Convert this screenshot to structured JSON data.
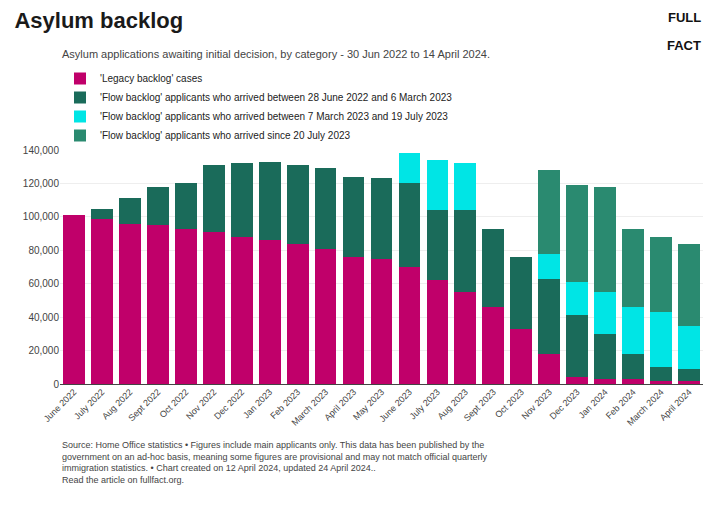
{
  "chart_data": {
    "type": "bar",
    "stacked": true,
    "title": "Asylum backlog",
    "subtitle": "Asylum applications awaiting initial decision, by category - 30 Jun 2022 to 14 April 2024.",
    "categories": [
      "June 2022",
      "July 2022",
      "Aug 2022",
      "Sept 2022",
      "Oct 2022",
      "Nov 2022",
      "Dec 2022",
      "Jan 2023",
      "Feb 2023",
      "March 2023",
      "April 2023",
      "May 2023",
      "June 2023",
      "July 2023",
      "Aug 2023",
      "Sept 2023",
      "Oct 2023",
      "Nov 2023",
      "Dec 2023",
      "Jan 2024",
      "Feb 2024",
      "March 2024",
      "April 2024"
    ],
    "series": [
      {
        "name": "'Legacy backlog' cases",
        "color": "#c0006a",
        "values": [
          101000,
          99000,
          96000,
          95000,
          93000,
          91000,
          88000,
          86000,
          84000,
          81000,
          76000,
          75000,
          70000,
          62000,
          55000,
          46000,
          33000,
          18000,
          4000,
          3000,
          3000,
          2000,
          2000
        ]
      },
      {
        "name": "'Flow backlog' applicants who arrived between 28 June 2022 and 6 March 2023",
        "color": "#1a6b5a",
        "values": [
          0,
          6000,
          15000,
          23000,
          27000,
          40000,
          44000,
          47000,
          47000,
          48000,
          48000,
          48000,
          50000,
          42000,
          49000,
          47000,
          43000,
          45000,
          37000,
          27000,
          15000,
          8000,
          7000
        ]
      },
      {
        "name": "'Flow backlog' applicants who arrived between 7 March 2023 and 19 July 2023",
        "color": "#00e5e5",
        "values": [
          0,
          0,
          0,
          0,
          0,
          0,
          0,
          0,
          0,
          0,
          0,
          0,
          18000,
          30000,
          28000,
          0,
          0,
          15000,
          20000,
          25000,
          28000,
          33000,
          26000
        ]
      },
      {
        "name": "'Flow backlog' applicants who arrived since 20 July 2023",
        "color": "#2a8a70",
        "values": [
          0,
          0,
          0,
          0,
          0,
          0,
          0,
          0,
          0,
          0,
          0,
          0,
          0,
          0,
          0,
          0,
          0,
          50000,
          58000,
          63000,
          47000,
          45000,
          49000
        ]
      }
    ],
    "ylim": [
      0,
      140000
    ],
    "yticks": [
      0,
      {
        "value": 20000,
        "label": "20,000"
      },
      {
        "value": 40000,
        "label": "40,000"
      },
      {
        "value": 60000,
        "label": "60,000"
      },
      {
        "value": 80000,
        "label": "80,000"
      },
      {
        "value": 100000,
        "label": "100,000"
      },
      {
        "value": 120000,
        "label": "120,000"
      },
      {
        "value": 140000,
        "label": "140,000"
      }
    ],
    "grid": true,
    "legend": "top left",
    "annotations": [
      "Source: Home Office statistics • Figures include main applicants only. This data has been published by the\ngovernment on an ad-hoc basis, meaning some figures are provisional and may not match official quarterly\nimmigration statistics. • Chart created on 12 April 2024, updated 24 April 2024..\nRead the article on fullfact.org.",
      "FULL",
      "FACT"
    ]
  }
}
